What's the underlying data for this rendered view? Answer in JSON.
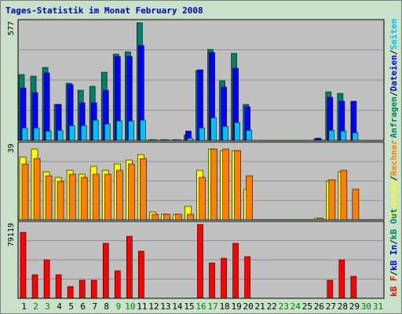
{
  "title": "Tages-Statistik im Monat February 2008",
  "days": [
    "1",
    "2",
    "3",
    "4",
    "5",
    "6",
    "7",
    "8",
    "9",
    "10",
    "11",
    "12",
    "13",
    "14",
    "15",
    "16",
    "17",
    "18",
    "19",
    "20",
    "21",
    "22",
    "23",
    "24",
    "25",
    "26",
    "27",
    "28",
    "29",
    "30",
    "31"
  ],
  "weekend_days": [
    "2",
    "3",
    "9",
    "10",
    "16",
    "17",
    "23",
    "24",
    "30",
    "31"
  ],
  "colors": {
    "panel_bg": "#c0c0c0",
    "frame_bg": "#c8e1c8",
    "anfragen": "#00806a",
    "dateien": "#0000ff",
    "seiten": "#00c0ff",
    "besuche": "#ffff00",
    "rechner": "#ff8000",
    "kb_in": "#ff0000",
    "weekday_label": "#000000",
    "weekend_label": "#008000"
  },
  "chart_data": [
    {
      "type": "bar",
      "panel": "hits",
      "ymax_label": "577",
      "ymax": 577,
      "legend": [
        "Anfragen",
        "Dateien",
        "Seiten"
      ],
      "series": [
        {
          "name": "Anfragen",
          "values": [
            324,
            314,
            358,
            176,
            281,
            245,
            266,
            335,
            424,
            435,
            577,
            2,
            2,
            2,
            28,
            343,
            445,
            293,
            428,
            176,
            0,
            0,
            0,
            0,
            0,
            8,
            240,
            230,
            0,
            0,
            0
          ]
        },
        {
          "name": "Dateien",
          "values": [
            256,
            236,
            330,
            176,
            274,
            185,
            185,
            245,
            412,
            412,
            466,
            0,
            0,
            0,
            45,
            348,
            430,
            260,
            353,
            167,
            0,
            0,
            0,
            0,
            0,
            12,
            213,
            193,
            193,
            0,
            0
          ]
        },
        {
          "name": "Seiten",
          "values": [
            60,
            60,
            48,
            50,
            75,
            75,
            100,
            80,
            95,
            95,
            100,
            2,
            2,
            2,
            10,
            60,
            112,
            70,
            90,
            50,
            0,
            0,
            0,
            0,
            0,
            2,
            50,
            45,
            40,
            0,
            0
          ]
        }
      ]
    },
    {
      "type": "bar",
      "panel": "visits",
      "ymax_label": "39",
      "ymax": 39,
      "legend": [
        "Besuche",
        "Rechner"
      ],
      "series": [
        {
          "name": "Besuche",
          "values": [
            33,
            37,
            25,
            22,
            26,
            24,
            28,
            26,
            29,
            31,
            34,
            4,
            3,
            3,
            7,
            26,
            37,
            36,
            36,
            16,
            0,
            0,
            0,
            0,
            0,
            1,
            20,
            25,
            0,
            0,
            0
          ]
        },
        {
          "name": "Rechner",
          "values": [
            29,
            32,
            23,
            20,
            24,
            22,
            24,
            24,
            26,
            29,
            32,
            3,
            3,
            3,
            3,
            22,
            37,
            37,
            36,
            23,
            0,
            0,
            0,
            0,
            0,
            1,
            21,
            26,
            16,
            0,
            0
          ]
        }
      ]
    },
    {
      "type": "bar",
      "panel": "kbytes",
      "ymax_label": "79119",
      "ymax": 79119,
      "legend": [
        "kB F",
        "kB In",
        "kB Out"
      ],
      "series": [
        {
          "name": "kB In",
          "values": [
            70800,
            25400,
            40900,
            25400,
            12700,
            19300,
            19300,
            58600,
            29300,
            66700,
            50800,
            0,
            0,
            0,
            0,
            79119,
            38100,
            43100,
            58600,
            44200,
            0,
            0,
            0,
            0,
            0,
            0,
            19300,
            41500,
            23800,
            0,
            0
          ]
        }
      ]
    }
  ]
}
